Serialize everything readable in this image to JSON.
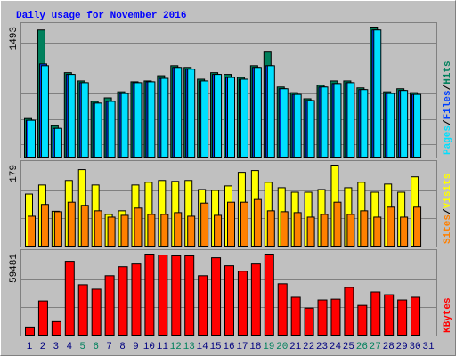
{
  "title": "Daily usage for November 2016",
  "chart_data": [
    {
      "type": "bar",
      "ylim": [
        0,
        1493
      ],
      "yticks": [
        1493
      ],
      "legend_separator": "/",
      "series": [
        {
          "name": "Hits",
          "color": "#00805c",
          "values": [
            443,
            1460,
            360,
            970,
            875,
            640,
            680,
            750,
            865,
            875,
            935,
            1050,
            1030,
            895,
            970,
            950,
            915,
            1050,
            1215,
            805,
            740,
            670,
            825,
            875,
            875,
            795,
            1493,
            750,
            785,
            740,
            null
          ]
        },
        {
          "name": "Files",
          "color": "#0040ff",
          "values": [
            423,
            1070,
            330,
            950,
            855,
            620,
            640,
            730,
            855,
            865,
            905,
            1030,
            1010,
            875,
            950,
            915,
            895,
            1030,
            1050,
            785,
            720,
            650,
            805,
            845,
            855,
            775,
            1460,
            730,
            765,
            720,
            null
          ]
        },
        {
          "name": "Pages",
          "color": "#00e0ff",
          "values": [
            423,
            1050,
            330,
            950,
            855,
            620,
            640,
            730,
            855,
            865,
            905,
            1030,
            1010,
            875,
            950,
            915,
            895,
            1030,
            1050,
            785,
            720,
            650,
            805,
            845,
            855,
            775,
            1460,
            730,
            765,
            720,
            null
          ]
        }
      ]
    },
    {
      "type": "bar",
      "ylim": [
        0,
        179
      ],
      "yticks": [
        179
      ],
      "legend_separator": "/",
      "series": [
        {
          "name": "Visits",
          "color": "#ffff00",
          "values": [
            115,
            135,
            77,
            145,
            169,
            135,
            70,
            78,
            135,
            141,
            145,
            143,
            145,
            125,
            123,
            133,
            163,
            167,
            141,
            129,
            119,
            119,
            125,
            179,
            129,
            141,
            119,
            137,
            119,
            153,
            null
          ]
        },
        {
          "name": "Sites",
          "color": "#ff8000",
          "values": [
            66,
            92,
            76,
            97,
            90,
            78,
            64,
            68,
            84,
            70,
            70,
            74,
            66,
            95,
            68,
            97,
            97,
            103,
            78,
            76,
            74,
            64,
            70,
            97,
            70,
            78,
            64,
            86,
            64,
            86,
            null
          ]
        }
      ]
    },
    {
      "type": "bar",
      "ylim": [
        0,
        59481
      ],
      "yticks": [
        59481
      ],
      "categories": [
        "1",
        "2",
        "3",
        "4",
        "5",
        "6",
        "7",
        "8",
        "9",
        "10",
        "11",
        "12",
        "13",
        "14",
        "15",
        "16",
        "17",
        "18",
        "19",
        "20",
        "21",
        "22",
        "23",
        "24",
        "25",
        "26",
        "27",
        "28",
        "29",
        "30",
        "31"
      ],
      "label_colors": [
        "#000080",
        "#000080",
        "#000080",
        "#000080",
        "#00805c",
        "#00805c",
        "#000080",
        "#000080",
        "#000080",
        "#000080",
        "#000080",
        "#00805c",
        "#00805c",
        "#000080",
        "#000080",
        "#000080",
        "#000080",
        "#000080",
        "#00805c",
        "#00805c",
        "#000080",
        "#000080",
        "#000080",
        "#000080",
        "#000080",
        "#00805c",
        "#00805c",
        "#000080",
        "#000080",
        "#000080",
        "#000080"
      ],
      "series": [
        {
          "name": "KBytes",
          "color": "#ff0000",
          "values": [
            5950,
            25100,
            9900,
            54200,
            37000,
            33700,
            43600,
            50200,
            52200,
            59481,
            58800,
            58200,
            58200,
            43600,
            56800,
            50900,
            46900,
            52200,
            59481,
            37700,
            27800,
            19800,
            25800,
            26400,
            35000,
            21800,
            31700,
            29700,
            25800,
            27800,
            null
          ]
        }
      ]
    }
  ]
}
